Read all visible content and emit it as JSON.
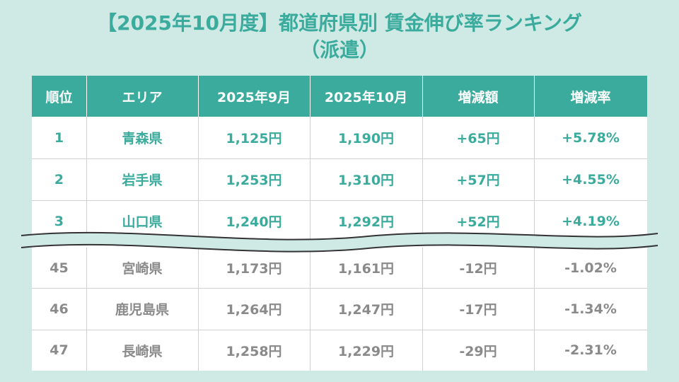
{
  "title": {
    "line1": "【2025年10月度】都道府県別 賃金伸び率ランキング",
    "line2": "（派遣）"
  },
  "chart_data": {
    "type": "table",
    "columns": [
      "順位",
      "エリア",
      "2025年9月",
      "2025年10月",
      "増減額",
      "増減率"
    ],
    "top_rows": [
      {
        "rank": "1",
        "area": "青森県",
        "sep": "1,125円",
        "oct": "1,190円",
        "diff": "+65円",
        "rate": "+5.78%"
      },
      {
        "rank": "2",
        "area": "岩手県",
        "sep": "1,253円",
        "oct": "1,310円",
        "diff": "+57円",
        "rate": "+4.55%"
      },
      {
        "rank": "3",
        "area": "山口県",
        "sep": "1,240円",
        "oct": "1,292円",
        "diff": "+52円",
        "rate": "+4.19%"
      }
    ],
    "bottom_rows": [
      {
        "rank": "45",
        "area": "宮崎県",
        "sep": "1,173円",
        "oct": "1,161円",
        "diff": "-12円",
        "rate": "-1.02%"
      },
      {
        "rank": "46",
        "area": "鹿児島県",
        "sep": "1,264円",
        "oct": "1,247円",
        "diff": "-17円",
        "rate": "-1.34%"
      },
      {
        "rank": "47",
        "area": "長崎県",
        "sep": "1,258円",
        "oct": "1,229円",
        "diff": "-29円",
        "rate": "-2.31%"
      }
    ]
  },
  "colors": {
    "background": "#cfe9e5",
    "accent": "#3aab9c",
    "muted_text": "#8a8a8a"
  }
}
